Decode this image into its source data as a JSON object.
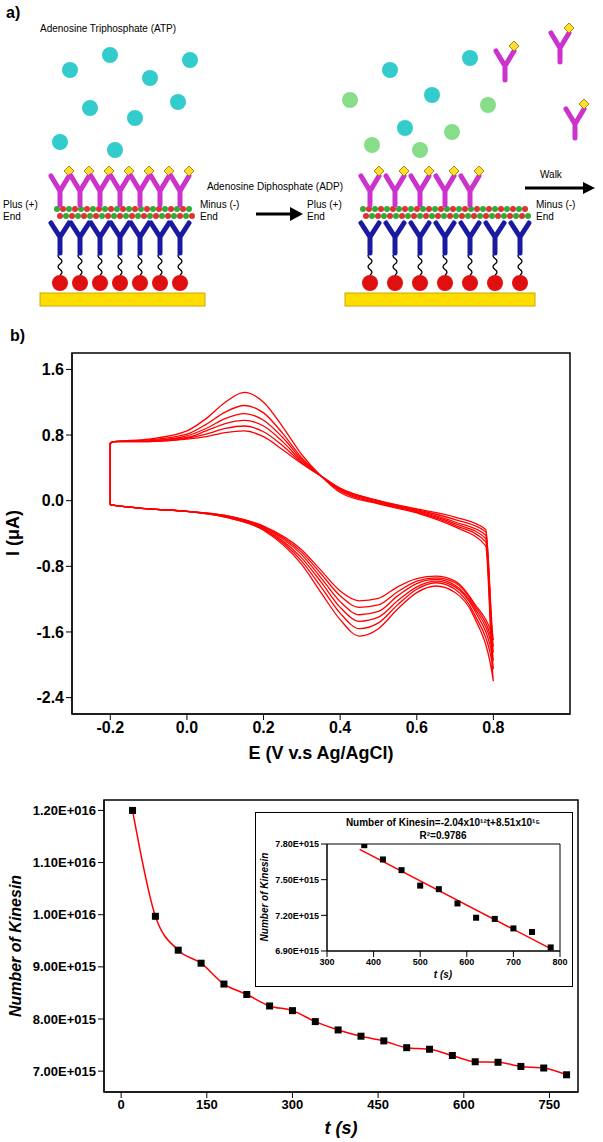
{
  "diagram": {
    "label": "a)",
    "left": {
      "molecule": "Adenosine Triphosphate (ATP)",
      "plus_end": "Plus (+) End",
      "minus_end": "Minus (-) End"
    },
    "right": {
      "molecule": "Adenosine Diphosphate (ADP)",
      "plus_end": "Plus (+) End",
      "minus_end": "Minus (-) End",
      "motion": "Walk"
    }
  },
  "chart_data": [
    {
      "label": "b)",
      "type": "line",
      "x_label": "E (V v.s Ag/AgCl)",
      "y_label": "I (μA)",
      "color": "#ff0000",
      "xlim": [
        -0.3,
        1.0
      ],
      "xticks": [
        -0.2,
        {
          "value": 0,
          "label": "0.0"
        },
        0.2,
        0.4,
        0.6,
        0.8
      ],
      "ylim": [
        -2.6,
        1.8
      ],
      "yticks": [
        {
          "value": -2.4,
          "label": "-2.4"
        },
        -1.6,
        -0.8,
        {
          "value": 0,
          "label": "0.0"
        },
        0.8,
        1.6
      ],
      "x": [
        -0.2,
        -0.1,
        0.0,
        0.1,
        0.2,
        0.3,
        0.35,
        0.4,
        0.45,
        0.5,
        0.55,
        0.6,
        0.65,
        0.7,
        0.75,
        0.8,
        0.78,
        0.7,
        0.6,
        0.5,
        0.4,
        0.35,
        0.3,
        0.25,
        0.2,
        0.15,
        0.1,
        0.05,
        0.0,
        -0.1,
        -0.19,
        -0.2,
        -0.2
      ],
      "series": [
        {
          "values": [
            -0.05,
            -0.1,
            -0.13,
            -0.2,
            -0.36,
            -0.78,
            -1.12,
            -1.45,
            -1.65,
            -1.56,
            -1.32,
            -1.12,
            -1.04,
            -1.12,
            -1.42,
            -2.2,
            -0.55,
            -0.32,
            -0.15,
            -0.04,
            0.1,
            0.3,
            0.56,
            0.9,
            1.2,
            1.32,
            1.2,
            1.0,
            0.85,
            0.75,
            0.72,
            0.7,
            -0.05
          ]
        },
        {
          "values": [
            -0.05,
            -0.1,
            -0.13,
            -0.2,
            -0.35,
            -0.74,
            -1.05,
            -1.37,
            -1.56,
            -1.49,
            -1.27,
            -1.08,
            -1.0,
            -1.08,
            -1.38,
            -2.05,
            -0.5,
            -0.3,
            -0.14,
            -0.03,
            0.12,
            0.3,
            0.52,
            0.82,
            1.07,
            1.16,
            1.08,
            0.93,
            0.81,
            0.74,
            0.72,
            0.7,
            -0.05
          ]
        },
        {
          "values": [
            -0.05,
            -0.1,
            -0.13,
            -0.19,
            -0.34,
            -0.7,
            -0.99,
            -1.3,
            -1.47,
            -1.42,
            -1.22,
            -1.05,
            -0.98,
            -1.05,
            -1.33,
            -1.95,
            -0.46,
            -0.28,
            -0.13,
            -0.02,
            0.13,
            0.3,
            0.5,
            0.77,
            0.98,
            1.06,
            1.0,
            0.88,
            0.79,
            0.73,
            0.72,
            0.7,
            -0.05
          ]
        },
        {
          "values": [
            -0.05,
            -0.1,
            -0.13,
            -0.19,
            -0.33,
            -0.66,
            -0.94,
            -1.23,
            -1.39,
            -1.35,
            -1.16,
            -1.01,
            -0.96,
            -1.03,
            -1.3,
            -1.85,
            -0.42,
            -0.26,
            -0.12,
            -0.01,
            0.14,
            0.3,
            0.48,
            0.72,
            0.91,
            0.98,
            0.94,
            0.85,
            0.77,
            0.73,
            0.72,
            0.7,
            -0.05
          ]
        },
        {
          "values": [
            -0.05,
            -0.1,
            -0.13,
            -0.18,
            -0.32,
            -0.63,
            -0.89,
            -1.16,
            -1.3,
            -1.27,
            -1.11,
            -0.98,
            -0.94,
            -1.0,
            -1.27,
            -1.78,
            -0.38,
            -0.23,
            -0.11,
            0.0,
            0.15,
            0.3,
            0.46,
            0.67,
            0.84,
            0.91,
            0.88,
            0.81,
            0.76,
            0.72,
            0.72,
            0.7,
            -0.05
          ]
        },
        {
          "values": [
            -0.05,
            -0.1,
            -0.13,
            -0.18,
            -0.31,
            -0.6,
            -0.85,
            -1.1,
            -1.22,
            -1.19,
            -1.05,
            -0.95,
            -0.92,
            -0.98,
            -1.25,
            -1.7,
            -0.35,
            -0.2,
            -0.1,
            0.0,
            0.15,
            0.3,
            0.45,
            0.62,
            0.78,
            0.85,
            0.83,
            0.78,
            0.75,
            0.72,
            0.72,
            0.7,
            -0.05
          ]
        }
      ]
    },
    {
      "type": "line",
      "x_label": "t (s)",
      "y_label": "Number of Kinesin",
      "color": "#ff0000",
      "marker": "square",
      "xlim": [
        -30,
        800
      ],
      "xticks": [
        0,
        150,
        300,
        450,
        600,
        750
      ],
      "ylim": [
        6600000000000000.0,
        1.22e+16
      ],
      "yticks": [
        {
          "value": 7000000000000000.0,
          "label": "7.00E+015"
        },
        {
          "value": 8000000000000000.0,
          "label": "8.00E+015"
        },
        {
          "value": 9000000000000000.0,
          "label": "9.00E+015"
        },
        {
          "value": 1e+16,
          "label": "1.00E+016"
        },
        {
          "value": 1.1e+16,
          "label": "1.10E+016"
        },
        {
          "value": 1.2e+16,
          "label": "1.20E+016"
        }
      ],
      "x": [
        20,
        60,
        100,
        140,
        180,
        220,
        260,
        300,
        340,
        380,
        420,
        460,
        500,
        540,
        580,
        620,
        660,
        700,
        740,
        780
      ],
      "values": [
        1.2e+16,
        9970000000000000.0,
        9320000000000000.0,
        9070000000000000.0,
        8670000000000000.0,
        8470000000000000.0,
        8250000000000000.0,
        8160000000000000.0,
        7950000000000000.0,
        7790000000000000.0,
        7670000000000000.0,
        7580000000000000.0,
        7450000000000000.0,
        7420000000000000.0,
        7300000000000000.0,
        7180000000000000.0,
        7170000000000000.0,
        7090000000000000.0,
        7060000000000000.0,
        6930000000000000.0
      ]
    },
    {
      "type": "scatter",
      "x_label": "t (s)",
      "y_label": "Number of Kinesin",
      "color": "#ff0000",
      "marker": "square",
      "annotations": [
        "Number of Kinesin=-2.04x10¹²t+8.51x10¹⁵",
        "R²=0.9786"
      ],
      "xlim": [
        300,
        800
      ],
      "xticks": [
        300,
        400,
        500,
        600,
        700,
        800
      ],
      "ylim": [
        6900000000000000.0,
        7800000000000000.0
      ],
      "yticks": [
        {
          "value": 6900000000000000.0,
          "label": "6.90E+015"
        },
        {
          "value": 7200000000000000.0,
          "label": "7.20E+015"
        },
        {
          "value": 7500000000000000.0,
          "label": "7.50E+015"
        },
        {
          "value": 7800000000000000.0,
          "label": "7.80E+015"
        }
      ],
      "x": [
        380,
        420,
        460,
        500,
        540,
        580,
        620,
        660,
        700,
        740,
        780
      ],
      "values": [
        7790000000000000.0,
        7670000000000000.0,
        7580000000000000.0,
        7450000000000000.0,
        7420000000000000.0,
        7300000000000000.0,
        7180000000000000.0,
        7170000000000000.0,
        7090000000000000.0,
        7060000000000000.0,
        6930000000000000.0
      ],
      "fit": {
        "x": [
          370,
          785
        ],
        "values": [
          7755000000000000.0,
          6909000000000000.0
        ]
      }
    }
  ]
}
